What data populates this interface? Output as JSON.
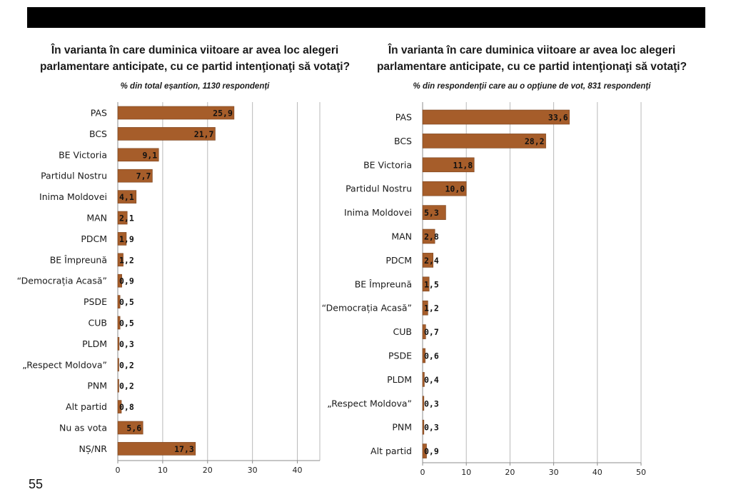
{
  "page_number": "55",
  "chart_data": [
    {
      "type": "bar",
      "orientation": "horizontal",
      "title_lines": [
        "În varianta în care duminica viitoare ar avea loc alegeri",
        "parlamentare anticipate, cu ce partid intenţionaţi să votaţi?"
      ],
      "subtitle": "% din total eșantion, 1130 respondenți",
      "categories": [
        "PAS",
        "BCS",
        "BE Victoria",
        "Partidul Nostru",
        "Inima Moldovei",
        "MAN",
        "PDCM",
        "BE Împreună",
        "“Democrația Acasă”",
        "PSDE",
        "CUB",
        "PLDM",
        "„Respect Moldova”",
        "PNM",
        "Alt partid",
        "Nu as vota",
        "NȘ/NR"
      ],
      "values": [
        25.9,
        21.7,
        9.1,
        7.7,
        4.1,
        2.1,
        1.9,
        1.2,
        0.9,
        0.5,
        0.5,
        0.3,
        0.2,
        0.2,
        0.8,
        5.6,
        17.3
      ],
      "value_labels": [
        "25,9",
        "21,7",
        "9,1",
        "7,7",
        "4,1",
        "2,1",
        "1,9",
        "1,2",
        "0,9",
        "0,5",
        "0,5",
        "0,3",
        "0,2",
        "0,2",
        "0,8",
        "5,6",
        "17,3"
      ],
      "xlim": [
        0,
        45
      ],
      "xticks": [
        0,
        10,
        20,
        30,
        40
      ],
      "grid": true,
      "bar_color": "#a65d2a"
    },
    {
      "type": "bar",
      "orientation": "horizontal",
      "title_lines": [
        "În varianta în care duminica viitoare ar avea loc alegeri",
        "parlamentare anticipate, cu ce partid intenţionaţi să votaţi?"
      ],
      "subtitle": "% din respondenţii care au o opţiune de vot, 831 respondenţi",
      "categories": [
        "PAS",
        "BCS",
        "BE Victoria",
        "Partidul Nostru",
        "Inima Moldovei",
        "MAN",
        "PDCM",
        "BE Împreună",
        "“Democrația Acasă”",
        "CUB",
        "PSDE",
        "PLDM",
        "„Respect Moldova”",
        "PNM",
        "Alt partid"
      ],
      "values": [
        33.6,
        28.2,
        11.8,
        10.0,
        5.3,
        2.8,
        2.4,
        1.5,
        1.2,
        0.7,
        0.6,
        0.4,
        0.3,
        0.3,
        0.9
      ],
      "value_labels": [
        "33,6",
        "28,2",
        "11,8",
        "10,0",
        "5,3",
        "2,8",
        "2,4",
        "1,5",
        "1,2",
        "0,7",
        "0,6",
        "0,4",
        "0,3",
        "0,3",
        "0,9"
      ],
      "xlim": [
        0,
        50
      ],
      "xticks": [
        0,
        10,
        20,
        30,
        40,
        50
      ],
      "grid": true,
      "bar_color": "#a65d2a"
    }
  ]
}
